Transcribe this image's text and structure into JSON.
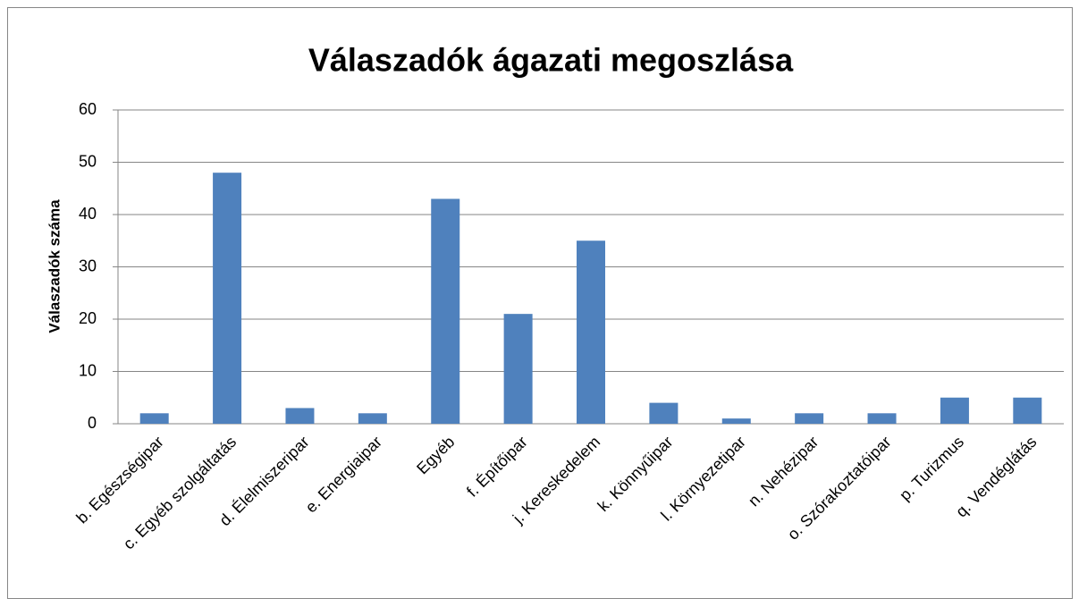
{
  "chart_data": {
    "type": "bar",
    "title": "Válaszadók ágazati megoszlása",
    "y_label": "Válaszadók száma",
    "categories": [
      "b. Egészségipar",
      "c. Egyéb szolgáltatás",
      "d. Élelmiszeripar",
      "e. Energiaipar",
      "Egyéb",
      "f. Építőipar",
      "j. Kereskedelem",
      "k. Könnyűipar",
      "l. Környezetipar",
      "n. Nehézipar",
      "o. Szórakoztatóipar",
      "p. Turizmus",
      "q. Vendéglátás"
    ],
    "values": [
      2,
      48,
      3,
      2,
      43,
      21,
      35,
      4,
      1,
      2,
      2,
      5,
      5
    ],
    "color": "#4f81bd",
    "ylim": [
      0,
      60
    ],
    "yticks": [
      0,
      10,
      20,
      30,
      40,
      50,
      60
    ],
    "grid": true
  }
}
